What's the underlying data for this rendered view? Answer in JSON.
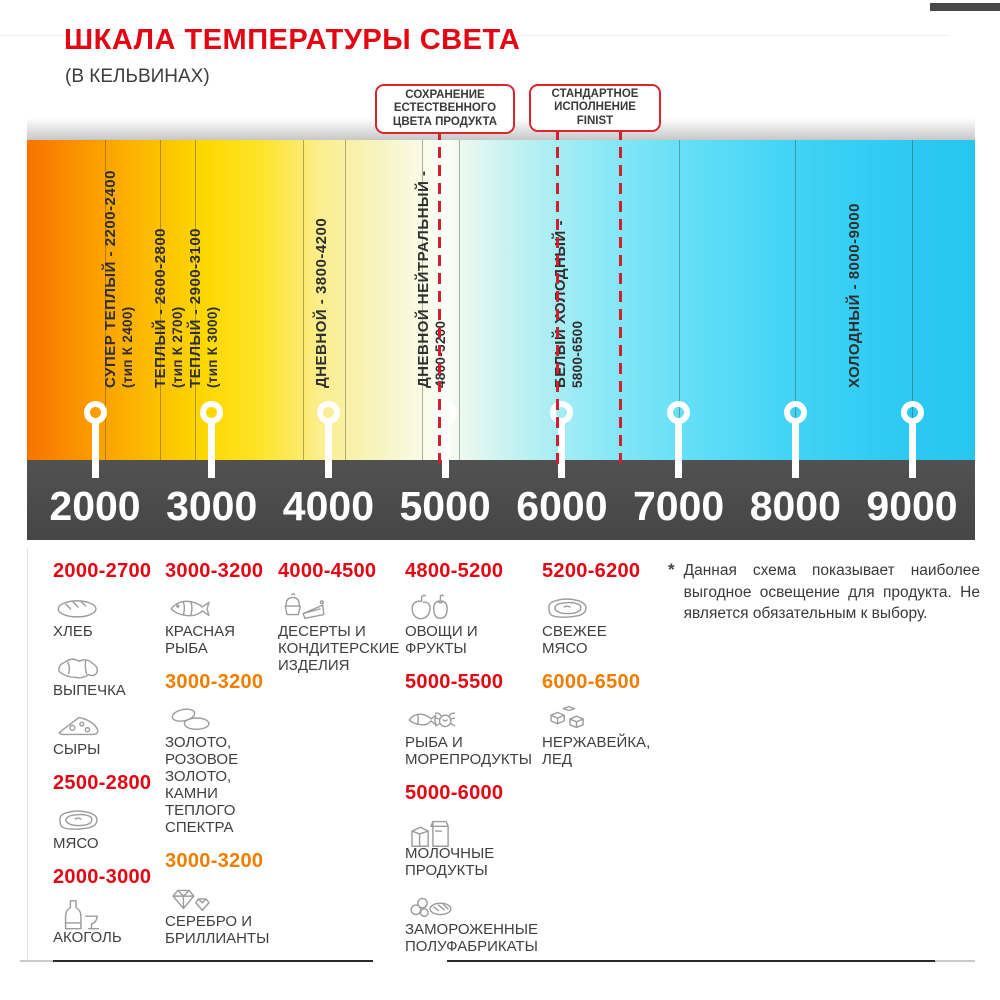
{
  "title": "ШКАЛА ТЕМПЕРАТУРЫ СВЕТА",
  "subtitle": "(В КЕЛЬВИНАХ)",
  "callouts": [
    {
      "text": "СОХРАНЕНИЕ\nЕСТЕСТВЕННОГО\nЦВЕТА ПРОДУКТА"
    },
    {
      "text": "СТАНДАРТНОЕ\nИСПОЛНЕНИЕ\nFINIST"
    }
  ],
  "scale": {
    "unit": "K",
    "min": 2000,
    "max": 9000,
    "axis_ticks": [
      "2000",
      "3000",
      "4000",
      "5000",
      "6000",
      "7000",
      "8000",
      "9000"
    ],
    "pins_k": [
      2000,
      3000,
      4000,
      5000,
      6000,
      7000,
      8000,
      9000
    ],
    "zones": [
      {
        "label": "СУПЕР ТЕПЛЫЙ - 2200-2400",
        "sub": "(тип К 2400)",
        "k": 2230
      },
      {
        "label": "ТЕПЛЫЙ - 2600-2800",
        "sub": "(тип К 2700)",
        "k": 2660
      },
      {
        "label": "ТЕПЛЫЙ - 2900-3100",
        "sub": "(тип К 3000)",
        "k": 2960
      },
      {
        "label": "ДНЕВНОЙ - 3800-4200",
        "sub": "",
        "k": 3945
      },
      {
        "label": "ДНЕВНОЙ НЕЙТРАЛЬНЫЙ -",
        "sub": "4800-5200",
        "k": 4915
      },
      {
        "label": "БЕЛЫЙ ХОЛОДНЫЙ -",
        "sub": "5800-6500",
        "k": 6090
      },
      {
        "label": "ХОЛОДНЫЙ - 8000-9000",
        "sub": "",
        "k": 8510
      }
    ],
    "dashed_marks_k": [
      4950,
      5965,
      6500
    ],
    "separator_marks_k": [
      2085,
      2555,
      2855,
      3780,
      4140,
      4800,
      5115,
      7000,
      8000,
      9000
    ]
  },
  "categories": [
    {
      "items": [
        {
          "type": "range",
          "value": "2000-2700",
          "color": "red"
        },
        {
          "type": "product",
          "icon": "bread-icon",
          "label": "ХЛЕБ"
        },
        {
          "type": "product",
          "icon": "croissant-icon",
          "label": "ВЫПЕЧКА"
        },
        {
          "type": "product",
          "icon": "cheese-icon",
          "label": "СЫРЫ"
        },
        {
          "type": "range",
          "value": "2500-2800",
          "color": "red"
        },
        {
          "type": "product",
          "icon": "meat-icon",
          "label": "МЯСО"
        },
        {
          "type": "range",
          "value": "2000-3000",
          "color": "red"
        },
        {
          "type": "product",
          "icon": "alcohol-icon",
          "label": "АКОГОЛЬ"
        }
      ]
    },
    {
      "items": [
        {
          "type": "range",
          "value": "3000-3200",
          "color": "red"
        },
        {
          "type": "product",
          "icon": "fish-icon",
          "label": "КРАСНАЯ\nРЫБА"
        },
        {
          "type": "range",
          "value": "3000-3200",
          "color": "orange"
        },
        {
          "type": "product",
          "icon": "rings-icon",
          "label": "ЗОЛОТО,\nРОЗОВОЕ ЗОЛОТО,\nКАМНИ ТЕПЛОГО\nСПЕКТРА"
        },
        {
          "type": "range",
          "value": "3000-3200",
          "color": "orange"
        },
        {
          "type": "product",
          "icon": "diamond-icon",
          "label": "СЕРЕБРО И\nБРИЛЛИАНТЫ"
        }
      ]
    },
    {
      "items": [
        {
          "type": "range",
          "value": "4000-4500",
          "color": "red"
        },
        {
          "type": "product",
          "icon": "dessert-icon",
          "label": "ДЕСЕРТЫ И\nКОНДИТЕРСКИЕ\nИЗДЕЛИЯ"
        }
      ]
    },
    {
      "items": [
        {
          "type": "range",
          "value": "4800-5200",
          "color": "red"
        },
        {
          "type": "product",
          "icon": "fruits-icon",
          "label": "ОВОЩИ И\nФРУКТЫ"
        },
        {
          "type": "range",
          "value": "5000-5500",
          "color": "red"
        },
        {
          "type": "product",
          "icon": "seafood-icon",
          "label": "РЫБА И\nМОРЕПРОДУКТЫ"
        },
        {
          "type": "range",
          "value": "5000-6000",
          "color": "red"
        },
        {
          "type": "product",
          "icon": "dairy-icon",
          "label": "МОЛОЧНЫЕ ПРОДУКТЫ"
        },
        {
          "type": "product",
          "icon": "frozen-icon",
          "label": "ЗАМОРОЖЕННЫЕ\nПОЛУФАБРИКАТЫ"
        }
      ]
    },
    {
      "items": [
        {
          "type": "range",
          "value": "5200-6200",
          "color": "red"
        },
        {
          "type": "product",
          "icon": "fresh-meat-icon",
          "label": "СВЕЖЕЕ\nМЯСО"
        },
        {
          "type": "range",
          "value": "6000-6500",
          "color": "orange"
        },
        {
          "type": "product",
          "icon": "ice-icon",
          "label": "НЕРЖАВЕЙКА,\nЛЕД"
        }
      ]
    }
  ],
  "note": {
    "star": "*",
    "text": "Данная схема показывает наиболее выгодное освещение для продукта. Не является обязательным к выбору."
  },
  "colors": {
    "accent_red": "#e30613",
    "accent_orange": "#ef7d00",
    "axis_bar": "#4b4b4b",
    "callout_border": "#d9252c",
    "dash_red": "#cf2030",
    "icon_gray": "#9c9c9c"
  }
}
